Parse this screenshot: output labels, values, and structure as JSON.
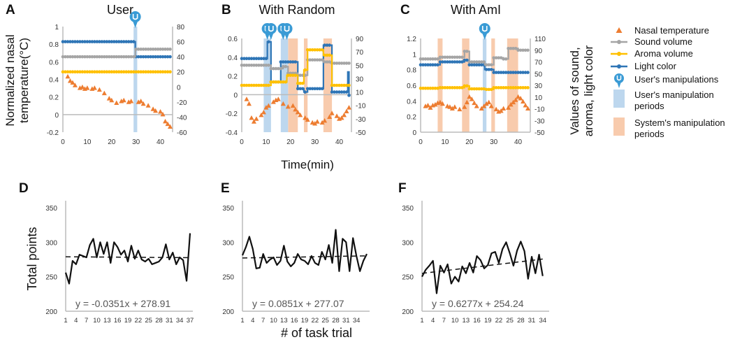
{
  "figure": {
    "xlabel_top": "Time(min)",
    "ylabel_top_left": [
      "Normalized nasal",
      "temperature(°C)"
    ],
    "ylabel_top_right": [
      "Values of sound,",
      "aroma, light color"
    ],
    "xlabel_bottom": "# of task trial",
    "ylabel_bottom": "Total points"
  },
  "legend": [
    {
      "label": "Nasal temperature",
      "color": "#ED7D31",
      "marker": "triangle"
    },
    {
      "label": "Sound volume",
      "color": "#A5A5A5",
      "marker": "line-dot"
    },
    {
      "label": "Aroma volume",
      "color": "#FFC000",
      "marker": "line-dot"
    },
    {
      "label": "Light color",
      "color": "#2E75B6",
      "marker": "line-dot"
    },
    {
      "label": "User's manipulations",
      "color": "#3A9BD5",
      "marker": "pin"
    },
    {
      "label": [
        "User's manipulation",
        "periods"
      ],
      "color": "#BDD7EE",
      "marker": "box"
    },
    {
      "label": [
        "System's manipulation",
        "periods"
      ],
      "color": "#F8CBAD",
      "marker": "box"
    }
  ],
  "chart_data": [
    {
      "panel": "A",
      "title": "User",
      "type": "line",
      "xlim": [
        0,
        45
      ],
      "xticks": [
        0,
        10,
        20,
        30,
        40
      ],
      "ylim_left": [
        -0.2,
        1.0
      ],
      "yticks_left": [
        -0.2,
        0,
        0.2,
        0.4,
        0.6,
        0.8,
        1
      ],
      "ylim_right": [
        -60,
        80
      ],
      "yticks_right": [
        -60,
        -40,
        -20,
        0,
        20,
        40,
        60,
        80
      ],
      "user_periods": [
        [
          29,
          30.5
        ]
      ],
      "system_periods": [],
      "user_manipulations": [
        29.7
      ],
      "series": [
        {
          "name": "Light color",
          "axis": "right",
          "step": [
            [
              0,
              60
            ],
            [
              29.7,
              40
            ],
            [
              44,
              40
            ]
          ]
        },
        {
          "name": "Sound volume",
          "axis": "right",
          "step": [
            [
              0,
              40
            ],
            [
              29.7,
              50
            ],
            [
              44,
              50
            ]
          ]
        },
        {
          "name": "Aroma volume",
          "axis": "right",
          "step": [
            [
              0,
              20
            ],
            [
              44,
              20
            ]
          ]
        },
        {
          "name": "Nasal temperature",
          "axis": "left",
          "points": [
            [
              2,
              0.43
            ],
            [
              3,
              0.38
            ],
            [
              4,
              0.36
            ],
            [
              5,
              0.33
            ],
            [
              7,
              0.3
            ],
            [
              8,
              0.31
            ],
            [
              9,
              0.29
            ],
            [
              10,
              0.3
            ],
            [
              12,
              0.29
            ],
            [
              13,
              0.3
            ],
            [
              15,
              0.28
            ],
            [
              17,
              0.24
            ],
            [
              19,
              0.18
            ],
            [
              20,
              0.16
            ],
            [
              22,
              0.13
            ],
            [
              24,
              0.15
            ],
            [
              25,
              0.16
            ],
            [
              27,
              0.14
            ],
            [
              28,
              0.15
            ],
            [
              31,
              0.14
            ],
            [
              32,
              0.15
            ],
            [
              33,
              0.12
            ],
            [
              35,
              0.1
            ],
            [
              37,
              0.06
            ],
            [
              38,
              0.04
            ],
            [
              40,
              0.03
            ],
            [
              41,
              0.0
            ],
            [
              42,
              -0.08
            ],
            [
              43,
              -0.11
            ],
            [
              44,
              -0.14
            ]
          ]
        }
      ]
    },
    {
      "panel": "B",
      "title": "With Random",
      "type": "line",
      "xlim": [
        0,
        45
      ],
      "xticks": [
        0,
        10,
        20,
        30,
        40
      ],
      "ylim_left": [
        -0.4,
        0.6
      ],
      "yticks_left": [
        -0.4,
        -0.2,
        0,
        0.2,
        0.4,
        0.6
      ],
      "ylim_right": [
        -50,
        90
      ],
      "yticks_right": [
        -50,
        -30,
        -10,
        10,
        30,
        50,
        70,
        90
      ],
      "user_periods": [
        [
          9,
          12
        ],
        [
          16,
          19
        ]
      ],
      "system_periods": [
        [
          19,
          23
        ],
        [
          25.5,
          27
        ],
        [
          33.5,
          37
        ]
      ],
      "user_manipulations": [
        10.5,
        12,
        17,
        18.5
      ],
      "series": [
        {
          "name": "Light color",
          "axis": "right",
          "step": [
            [
              0,
              60
            ],
            [
              10.5,
              85
            ],
            [
              12,
              25
            ],
            [
              16,
              55
            ],
            [
              19,
              55
            ],
            [
              23,
              15
            ],
            [
              25.5,
              10
            ],
            [
              27,
              15
            ],
            [
              33.5,
              80
            ],
            [
              37,
              10
            ],
            [
              43.5,
              40
            ],
            [
              44,
              5
            ]
          ]
        },
        {
          "name": "Sound volume",
          "axis": "right",
          "step": [
            [
              0,
              50
            ],
            [
              12,
              45
            ],
            [
              17,
              48
            ],
            [
              19,
              38
            ],
            [
              23,
              35
            ],
            [
              27,
              58
            ],
            [
              33.5,
              55
            ],
            [
              37,
              53
            ],
            [
              44,
              53
            ]
          ]
        },
        {
          "name": "Aroma volume",
          "axis": "right",
          "step": [
            [
              0,
              20
            ],
            [
              12,
              25
            ],
            [
              18.5,
              35
            ],
            [
              23,
              23
            ],
            [
              25.5,
              43
            ],
            [
              27,
              73
            ],
            [
              33.5,
              65
            ],
            [
              37,
              20
            ],
            [
              44,
              20
            ]
          ]
        },
        {
          "name": "Nasal temperature",
          "axis": "left",
          "points": [
            [
              2,
              -0.05
            ],
            [
              3,
              -0.1
            ],
            [
              4,
              -0.25
            ],
            [
              5,
              -0.29
            ],
            [
              6,
              -0.26
            ],
            [
              8,
              -0.22
            ],
            [
              9,
              -0.19
            ],
            [
              10,
              -0.14
            ],
            [
              11,
              -0.12
            ],
            [
              13,
              -0.08
            ],
            [
              14,
              -0.06
            ],
            [
              15,
              -0.05
            ],
            [
              17,
              -0.1
            ],
            [
              19,
              -0.13
            ],
            [
              21,
              -0.12
            ],
            [
              22,
              -0.16
            ],
            [
              23,
              -0.19
            ],
            [
              24,
              -0.22
            ],
            [
              26,
              -0.25
            ],
            [
              27,
              -0.27
            ],
            [
              29,
              -0.3
            ],
            [
              30,
              -0.31
            ],
            [
              31,
              -0.29
            ],
            [
              33,
              -0.3
            ],
            [
              34,
              -0.28
            ],
            [
              36,
              -0.24
            ],
            [
              37,
              -0.2
            ],
            [
              39,
              -0.23
            ],
            [
              40,
              -0.26
            ],
            [
              41,
              -0.25
            ],
            [
              42,
              -0.22
            ],
            [
              43,
              -0.18
            ],
            [
              44,
              -0.14
            ]
          ]
        }
      ]
    },
    {
      "panel": "C",
      "title": "With AmI",
      "type": "line",
      "xlim": [
        0,
        45
      ],
      "xticks": [
        0,
        10,
        20,
        30,
        40
      ],
      "ylim_left": [
        0,
        1.2
      ],
      "yticks_left": [
        0,
        0.2,
        0.4,
        0.6,
        0.8,
        1,
        1.2
      ],
      "ylim_right": [
        -50,
        110
      ],
      "yticks_right": [
        -50,
        -30,
        -10,
        10,
        30,
        50,
        70,
        90,
        110
      ],
      "user_periods": [
        [
          25.5,
          27
        ]
      ],
      "system_periods": [
        [
          7,
          9
        ],
        [
          17,
          20
        ],
        [
          29,
          30.5
        ],
        [
          35.5,
          40
        ]
      ],
      "user_manipulations": [
        26.3
      ],
      "series": [
        {
          "name": "Light color",
          "axis": "right",
          "step": [
            [
              0,
              65
            ],
            [
              8,
              70
            ],
            [
              18,
              73
            ],
            [
              20,
              65
            ],
            [
              26.3,
              57
            ],
            [
              30,
              52
            ],
            [
              44,
              52
            ]
          ]
        },
        {
          "name": "Sound volume",
          "axis": "right",
          "step": [
            [
              0,
              75
            ],
            [
              8,
              78
            ],
            [
              18,
              88
            ],
            [
              20,
              70
            ],
            [
              26.3,
              65
            ],
            [
              30,
              77
            ],
            [
              34,
              75
            ],
            [
              36,
              93
            ],
            [
              40,
              90
            ],
            [
              44,
              90
            ]
          ]
        },
        {
          "name": "Aroma volume",
          "axis": "right",
          "step": [
            [
              0,
              25
            ],
            [
              8,
              26
            ],
            [
              18,
              29
            ],
            [
              20,
              24
            ],
            [
              26.3,
              23
            ],
            [
              30,
              26
            ],
            [
              44,
              26
            ]
          ]
        },
        {
          "name": "Nasal temperature",
          "axis": "left",
          "points": [
            [
              2,
              0.33
            ],
            [
              3,
              0.34
            ],
            [
              4,
              0.31
            ],
            [
              5,
              0.34
            ],
            [
              6,
              0.35
            ],
            [
              7,
              0.37
            ],
            [
              8,
              0.38
            ],
            [
              9,
              0.36
            ],
            [
              11,
              0.33
            ],
            [
              12,
              0.32
            ],
            [
              13,
              0.3
            ],
            [
              14,
              0.32
            ],
            [
              16,
              0.29
            ],
            [
              18,
              0.32
            ],
            [
              19,
              0.38
            ],
            [
              20,
              0.45
            ],
            [
              21,
              0.42
            ],
            [
              22,
              0.37
            ],
            [
              23,
              0.33
            ],
            [
              25,
              0.3
            ],
            [
              26,
              0.33
            ],
            [
              27,
              0.36
            ],
            [
              28,
              0.38
            ],
            [
              29,
              0.33
            ],
            [
              31,
              0.29
            ],
            [
              32,
              0.26
            ],
            [
              33,
              0.27
            ],
            [
              34,
              0.3
            ],
            [
              36,
              0.31
            ],
            [
              37,
              0.35
            ],
            [
              38,
              0.38
            ],
            [
              39,
              0.41
            ],
            [
              40,
              0.45
            ],
            [
              41,
              0.43
            ],
            [
              42,
              0.39
            ],
            [
              43,
              0.34
            ],
            [
              44,
              0.3
            ]
          ]
        }
      ]
    },
    {
      "panel": "D",
      "type": "line",
      "ylim": [
        200,
        350
      ],
      "yticks": [
        200,
        250,
        300,
        350
      ],
      "xticks": [
        1,
        4,
        7,
        10,
        13,
        16,
        19,
        22,
        25,
        28,
        31,
        34,
        37
      ],
      "xlim": [
        1,
        37
      ],
      "trendline": {
        "slope": -0.0351,
        "intercept": 278.91,
        "label": "y = -0.0351x + 278.91"
      },
      "values": [
        256,
        240,
        273,
        268,
        282,
        280,
        278,
        296,
        305,
        278,
        300,
        283,
        300,
        270,
        300,
        293,
        282,
        288,
        272,
        295,
        276,
        288,
        275,
        272,
        276,
        268,
        270,
        272,
        278,
        297,
        275,
        285,
        268,
        278,
        274,
        244,
        313
      ]
    },
    {
      "panel": "E",
      "type": "line",
      "ylim": [
        200,
        350
      ],
      "yticks": [
        200,
        250,
        300,
        350
      ],
      "xticks": [
        1,
        4,
        7,
        10,
        13,
        16,
        19,
        22,
        25,
        28,
        31,
        34
      ],
      "xlim": [
        1,
        37
      ],
      "trendline": {
        "slope": 0.0851,
        "intercept": 277.07,
        "label": "y = 0.0851x + 277.07"
      },
      "values": [
        281,
        293,
        308,
        290,
        262,
        263,
        283,
        270,
        275,
        278,
        267,
        273,
        295,
        272,
        265,
        270,
        283,
        275,
        273,
        268,
        280,
        270,
        267,
        286,
        275,
        296,
        270,
        318,
        258,
        305,
        300,
        258,
        306,
        280,
        258,
        273,
        283
      ]
    },
    {
      "panel": "F",
      "type": "line",
      "ylim": [
        200,
        350
      ],
      "yticks": [
        200,
        250,
        300,
        350
      ],
      "xticks": [
        1,
        4,
        7,
        10,
        13,
        16,
        19,
        22,
        25,
        28,
        31,
        34
      ],
      "xlim": [
        1,
        35
      ],
      "trendline": {
        "slope": 0.6277,
        "intercept": 254.24,
        "label": "y = 0.6277x + 254.24"
      },
      "values": [
        250,
        260,
        266,
        273,
        226,
        266,
        256,
        268,
        240,
        250,
        243,
        265,
        255,
        270,
        256,
        280,
        274,
        262,
        267,
        284,
        286,
        270,
        290,
        300,
        284,
        266,
        288,
        301,
        287,
        247,
        279,
        255,
        282,
        251
      ]
    }
  ]
}
